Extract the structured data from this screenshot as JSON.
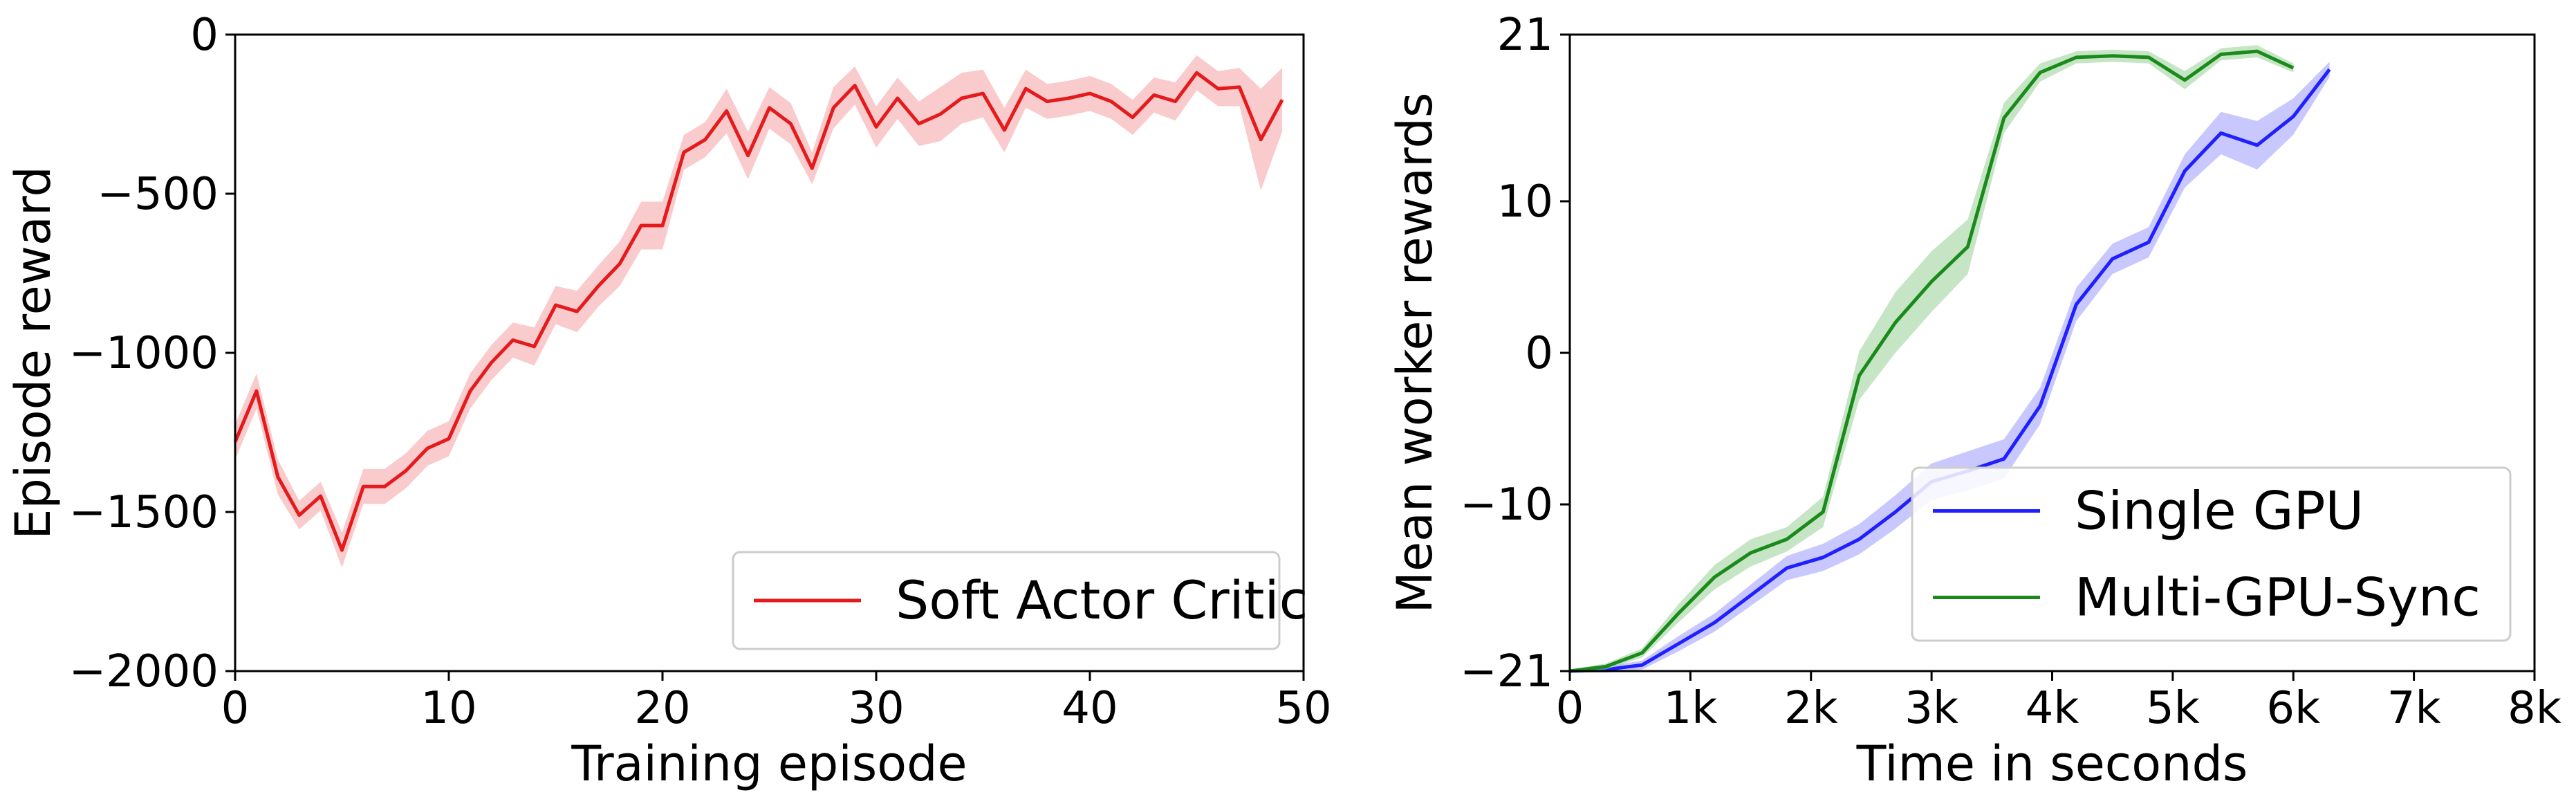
{
  "chart_data": [
    {
      "type": "line",
      "title": "",
      "xlabel": "Training episode",
      "ylabel": "Episode reward",
      "xlim": [
        0,
        50
      ],
      "ylim": [
        -2000,
        0
      ],
      "xticks": [
        0,
        10,
        20,
        30,
        40,
        50
      ],
      "yticks": [
        0,
        -500,
        -1000,
        -1500,
        -2000
      ],
      "xtick_labels": [
        "0",
        "10",
        "20",
        "30",
        "40",
        "50"
      ],
      "ytick_labels": [
        "0",
        "−500",
        "−1000",
        "−1500",
        "−2000"
      ],
      "grid": false,
      "legend_position": "lower-right",
      "series": [
        {
          "name": "Soft Actor Critic",
          "color": "#e41a1c",
          "band_color": "#f4a0a2",
          "x": [
            0,
            1,
            2,
            3,
            4,
            5,
            6,
            7,
            8,
            9,
            10,
            11,
            12,
            13,
            14,
            15,
            16,
            17,
            18,
            19,
            20,
            21,
            22,
            23,
            24,
            25,
            26,
            27,
            28,
            29,
            30,
            31,
            32,
            33,
            34,
            35,
            36,
            37,
            38,
            39,
            40,
            41,
            42,
            43,
            44,
            45,
            46,
            47,
            48,
            49
          ],
          "y": [
            -1280,
            -1120,
            -1390,
            -1510,
            -1450,
            -1620,
            -1420,
            -1420,
            -1370,
            -1300,
            -1270,
            -1120,
            -1030,
            -960,
            -980,
            -850,
            -870,
            -790,
            -720,
            -600,
            -600,
            -370,
            -330,
            -240,
            -380,
            -230,
            -280,
            -420,
            -230,
            -160,
            -290,
            -200,
            -280,
            -250,
            -200,
            -185,
            -300,
            -170,
            -210,
            -200,
            -185,
            -210,
            -260,
            -190,
            -210,
            -120,
            -170,
            -165,
            -330,
            -205
          ],
          "band": [
            55,
            55,
            55,
            45,
            45,
            55,
            55,
            55,
            55,
            55,
            55,
            55,
            55,
            55,
            60,
            60,
            65,
            65,
            70,
            75,
            75,
            55,
            55,
            70,
            75,
            65,
            65,
            50,
            65,
            60,
            65,
            65,
            70,
            85,
            80,
            75,
            70,
            60,
            55,
            55,
            55,
            55,
            55,
            55,
            60,
            55,
            55,
            60,
            160,
            100
          ]
        }
      ]
    },
    {
      "type": "line",
      "title": "",
      "xlabel": "Time in seconds",
      "ylabel": "Mean worker rewards",
      "xlim": [
        0,
        8000
      ],
      "ylim": [
        -21,
        21
      ],
      "xticks": [
        0,
        1000,
        2000,
        3000,
        4000,
        5000,
        6000,
        7000,
        8000
      ],
      "yticks": [
        21,
        10,
        0,
        -10,
        -21
      ],
      "xtick_labels": [
        "0",
        "1k",
        "2k",
        "3k",
        "4k",
        "5k",
        "6k",
        "7k",
        "8k"
      ],
      "ytick_labels": [
        "21",
        "10",
        "0",
        "−10",
        "−21"
      ],
      "grid": false,
      "legend_position": "lower-right",
      "series": [
        {
          "name": "Single GPU",
          "color": "#1f1fff",
          "band_color": "#9b9bff",
          "x": [
            0,
            300,
            600,
            900,
            1200,
            1500,
            1800,
            2100,
            2400,
            2700,
            3000,
            3300,
            3600,
            3900,
            4200,
            4500,
            4800,
            5100,
            5400,
            5700,
            6000,
            6300
          ],
          "y": [
            -21,
            -20.9,
            -20.6,
            -19.2,
            -17.8,
            -16,
            -14.2,
            -13.5,
            -12.3,
            -10.5,
            -8.5,
            -7.8,
            -7,
            -3.5,
            3.2,
            6.2,
            7.3,
            12,
            14.5,
            13.7,
            15.6,
            18.7
          ],
          "band": [
            0.1,
            0.2,
            0.3,
            0.5,
            0.6,
            0.7,
            0.8,
            0.9,
            1,
            1.1,
            1.2,
            1.3,
            1.3,
            1.2,
            1.1,
            1,
            1,
            1.1,
            1.4,
            1.6,
            1.2,
            0.5
          ]
        },
        {
          "name": "Multi-GPU-Sync",
          "color": "#1a8a1a",
          "band_color": "#96d096",
          "x": [
            0,
            300,
            600,
            900,
            1200,
            1500,
            1800,
            2100,
            2400,
            2700,
            3000,
            3300,
            3600,
            3900,
            4200,
            4500,
            4800,
            5100,
            5400,
            5700,
            6000
          ],
          "y": [
            -21,
            -20.7,
            -19.8,
            -17.2,
            -14.8,
            -13.2,
            -12.3,
            -10.5,
            -1.5,
            2,
            4.7,
            7,
            15.5,
            18.5,
            19.5,
            19.6,
            19.5,
            18,
            19.7,
            19.9,
            18.8
          ],
          "band": [
            0.1,
            0.2,
            0.3,
            0.6,
            0.8,
            0.9,
            0.8,
            1,
            1.6,
            2,
            2,
            1.8,
            1,
            0.6,
            0.4,
            0.4,
            0.4,
            0.6,
            0.4,
            0.4,
            0.3
          ]
        }
      ]
    }
  ]
}
